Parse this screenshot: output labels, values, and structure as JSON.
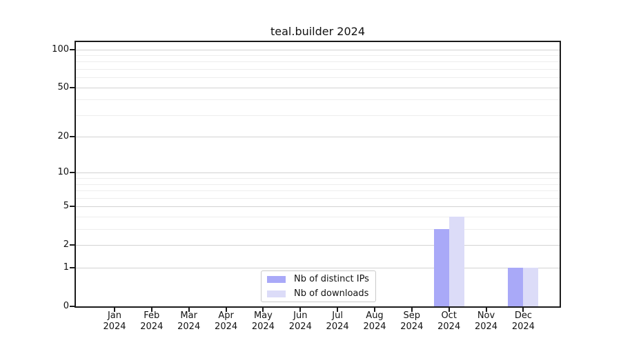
{
  "chart_data": {
    "type": "bar",
    "title": "teal.builder 2024",
    "months": [
      "Jan",
      "Feb",
      "Mar",
      "Apr",
      "May",
      "Jun",
      "Jul",
      "Aug",
      "Sep",
      "Oct",
      "Nov",
      "Dec"
    ],
    "year_label": "2024",
    "series": [
      {
        "name": "Nb of distinct IPs",
        "color": "#a9a9f8",
        "values": [
          0,
          0,
          0,
          0,
          0,
          0,
          0,
          0,
          0,
          3,
          0,
          1
        ]
      },
      {
        "name": "Nb of downloads",
        "color": "#dcdcf8",
        "values": [
          0,
          0,
          0,
          0,
          0,
          0,
          0,
          0,
          0,
          4,
          0,
          1
        ]
      }
    ],
    "xlabel": "",
    "ylabel": "",
    "yscale": "log1p",
    "yticks": [
      0,
      1,
      2,
      5,
      10,
      20,
      50,
      100
    ],
    "minor_yticks": [
      3,
      4,
      6,
      7,
      8,
      9,
      30,
      40,
      60,
      70,
      80,
      90
    ],
    "ylim": [
      0,
      114
    ],
    "grid": true,
    "legend_position": "lower center"
  }
}
